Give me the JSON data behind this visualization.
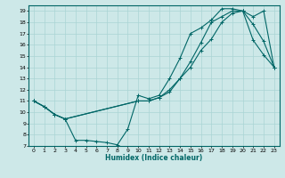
{
  "xlabel": "Humidex (Indice chaleur)",
  "bg_color": "#cde8e8",
  "line_color": "#006666",
  "grid_color": "#aad4d4",
  "xlim": [
    -0.5,
    23.5
  ],
  "ylim": [
    7,
    19.5
  ],
  "xticks": [
    0,
    1,
    2,
    3,
    4,
    5,
    6,
    7,
    8,
    9,
    10,
    11,
    12,
    13,
    14,
    15,
    16,
    17,
    18,
    19,
    20,
    21,
    22,
    23
  ],
  "yticks": [
    7,
    8,
    9,
    10,
    11,
    12,
    13,
    14,
    15,
    16,
    17,
    18,
    19
  ],
  "line1_x": [
    0,
    1,
    2,
    3,
    4,
    5,
    6,
    7,
    8,
    9,
    10,
    11,
    12,
    13,
    14,
    15,
    16,
    17,
    18,
    19,
    20,
    21,
    22,
    23
  ],
  "line1_y": [
    11,
    10.5,
    9.8,
    9.4,
    7.5,
    7.5,
    7.4,
    7.3,
    7.1,
    8.5,
    11.5,
    11.2,
    11.5,
    13.0,
    14.8,
    17.0,
    17.5,
    18.2,
    19.2,
    19.2,
    19.0,
    16.4,
    15.1,
    14.0
  ],
  "line2_x": [
    0,
    1,
    2,
    3,
    10,
    11,
    12,
    13,
    14,
    15,
    16,
    17,
    18,
    19,
    20,
    21,
    22,
    23
  ],
  "line2_y": [
    11,
    10.5,
    9.8,
    9.4,
    11.0,
    11.0,
    11.3,
    11.8,
    13.0,
    14.5,
    16.2,
    18.0,
    18.5,
    19.0,
    19.0,
    17.8,
    16.3,
    14.0
  ],
  "line3_x": [
    0,
    1,
    2,
    3,
    10,
    11,
    12,
    13,
    14,
    15,
    16,
    17,
    18,
    19,
    20,
    21,
    22,
    23
  ],
  "line3_y": [
    11,
    10.5,
    9.8,
    9.4,
    11.0,
    11.0,
    11.3,
    12.0,
    13.0,
    14.0,
    15.5,
    16.5,
    18.0,
    18.8,
    19.0,
    18.5,
    19.0,
    14.0
  ]
}
